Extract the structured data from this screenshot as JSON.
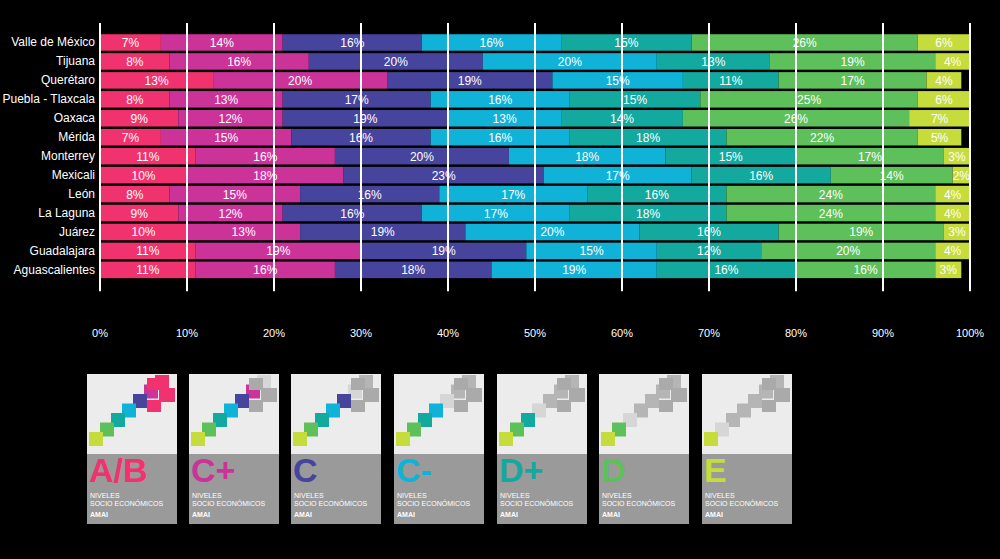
{
  "chart_data": {
    "type": "bar",
    "orientation": "horizontal",
    "stacked": true,
    "data_labels": true,
    "grid": true,
    "legend": "bottom",
    "categories": [
      "Valle de México",
      "Tijuana",
      "Querétaro",
      "Puebla - Tlaxcala",
      "Oaxaca",
      "Mérida",
      "Monterrey",
      "Mexicali",
      "León",
      "La Laguna",
      "Juárez",
      "Guadalajara",
      "Aguascalientes"
    ],
    "xlim": [
      0,
      100
    ],
    "xticks": [
      {
        "value": 0,
        "label": "0%"
      },
      {
        "value": 10,
        "label": "10%"
      },
      {
        "value": 20,
        "label": "20%"
      },
      {
        "value": 30,
        "label": "30%"
      },
      {
        "value": 40,
        "label": "40%"
      },
      {
        "value": 50,
        "label": "50%"
      },
      {
        "value": 60,
        "label": "60%"
      },
      {
        "value": 70,
        "label": "70%"
      },
      {
        "value": 80,
        "label": "80%"
      },
      {
        "value": 90,
        "label": "90%"
      },
      {
        "value": 100,
        "label": "100%"
      }
    ],
    "series": [
      {
        "name": "A/B",
        "color": "#f0336f",
        "values": [
          7,
          8,
          13,
          8,
          9,
          7,
          11,
          10,
          8,
          9,
          10,
          11,
          11
        ],
        "value_labels": [
          "7%",
          "8%",
          "13%",
          "8%",
          "9%",
          "7%",
          "11%",
          "10%",
          "8%",
          "9%",
          "10%",
          "11%",
          "11%"
        ]
      },
      {
        "name": "C+",
        "color": "#cc3399",
        "values": [
          14,
          16,
          20,
          13,
          12,
          15,
          16,
          18,
          15,
          12,
          13,
          19,
          16
        ],
        "value_labels": [
          "14%",
          "16%",
          "20%",
          "13%",
          "12%",
          "15%",
          "16%",
          "18%",
          "15%",
          "12%",
          "13%",
          "19%",
          "16%"
        ]
      },
      {
        "name": "C",
        "color": "#47449e",
        "values": [
          16,
          20,
          19,
          17,
          19,
          16,
          20,
          23,
          16,
          16,
          19,
          19,
          18
        ],
        "value_labels": [
          "16%",
          "20%",
          "19%",
          "17%",
          "19%",
          "16%",
          "20%",
          "23%",
          "16%",
          "16%",
          "19%",
          "19%",
          "18%"
        ]
      },
      {
        "name": "C-",
        "color": "#10b2d8",
        "values": [
          16,
          20,
          15,
          16,
          13,
          16,
          18,
          17,
          17,
          17,
          20,
          15,
          19
        ],
        "value_labels": [
          "16%",
          "20%",
          "15%",
          "16%",
          "13%",
          "16%",
          "18%",
          "17%",
          "17%",
          "17%",
          "20%",
          "15%",
          "19%"
        ]
      },
      {
        "name": "D+",
        "color": "#14a99f",
        "values": [
          15,
          13,
          11,
          15,
          14,
          18,
          15,
          16,
          16,
          18,
          16,
          12,
          16
        ],
        "value_labels": [
          "15%",
          "13%",
          "11%",
          "15%",
          "14%",
          "18%",
          "15%",
          "16%",
          "16%",
          "18%",
          "16%",
          "12%",
          "16%"
        ]
      },
      {
        "name": "D",
        "color": "#5ec05a",
        "values": [
          26,
          19,
          17,
          25,
          26,
          22,
          17,
          14,
          24,
          24,
          19,
          20,
          16
        ],
        "value_labels": [
          "26%",
          "19%",
          "17%",
          "25%",
          "26%",
          "22%",
          "17%",
          "14%",
          "24%",
          "24%",
          "19%",
          "20%",
          "16%"
        ]
      },
      {
        "name": "E",
        "color": "#c6db3c",
        "values": [
          6,
          4,
          4,
          6,
          7,
          5,
          3,
          2,
          4,
          4,
          3,
          4,
          3
        ],
        "value_labels": [
          "6%",
          "4%",
          "4%",
          "6%",
          "7%",
          "5%",
          "3%",
          "2%",
          "4%",
          "4%",
          "3%",
          "4%",
          "3%"
        ]
      }
    ],
    "annotations": [
      "NIVELES",
      "SOCIO ECONÓMICOS",
      "AMAI"
    ]
  }
}
